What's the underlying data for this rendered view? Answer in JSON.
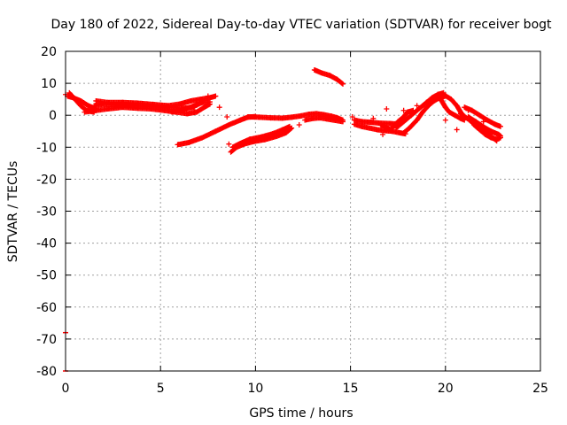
{
  "chart_data": {
    "type": "scatter",
    "title": "Day 180 of 2022, Sidereal Day-to-day VTEC variation (SDTVAR) for receiver bogt",
    "xlabel": "GPS time / hours",
    "ylabel": "SDTVAR / TECUs",
    "xlim": [
      0,
      25
    ],
    "ylim": [
      -80,
      20
    ],
    "xticks": [
      0,
      5,
      10,
      15,
      20,
      25
    ],
    "yticks": [
      -80,
      -70,
      -60,
      -50,
      -40,
      -30,
      -20,
      -10,
      0,
      10,
      20
    ],
    "grid": true,
    "marker": "+",
    "series_color": "#ff0000",
    "outliers": [
      {
        "x": 0.0,
        "y": -68
      },
      {
        "x": 0.0,
        "y": -80
      }
    ],
    "segments": [
      {
        "name": "arc-start-down",
        "points": [
          [
            0.2,
            7
          ],
          [
            0.5,
            5
          ],
          [
            0.8,
            3
          ],
          [
            1.1,
            1.5
          ],
          [
            1.5,
            1
          ]
        ]
      },
      {
        "name": "arc-start-up",
        "points": [
          [
            0.1,
            6
          ],
          [
            0.4,
            5.5
          ],
          [
            0.8,
            4.5
          ],
          [
            1.2,
            3
          ],
          [
            1.6,
            2
          ]
        ]
      },
      {
        "name": "band-low",
        "points": [
          [
            1.0,
            1
          ],
          [
            1.6,
            1.5
          ],
          [
            2.2,
            2
          ],
          [
            3.0,
            2.5
          ],
          [
            3.8,
            2.2
          ],
          [
            4.5,
            2
          ],
          [
            5.2,
            1.5
          ],
          [
            5.8,
            1
          ],
          [
            6.4,
            0.5
          ],
          [
            6.9,
            1
          ],
          [
            7.3,
            2.5
          ],
          [
            7.6,
            3.5
          ]
        ]
      },
      {
        "name": "band-mid",
        "points": [
          [
            1.5,
            3
          ],
          [
            2.0,
            3.5
          ],
          [
            2.8,
            3.2
          ],
          [
            3.5,
            3
          ],
          [
            4.2,
            2.8
          ],
          [
            4.9,
            2.6
          ],
          [
            5.6,
            2.4
          ],
          [
            6.2,
            2.2
          ],
          [
            6.8,
            2.5
          ]
        ]
      },
      {
        "name": "band-high",
        "points": [
          [
            1.6,
            4.5
          ],
          [
            2.2,
            4
          ],
          [
            3.0,
            4
          ],
          [
            3.8,
            3.8
          ],
          [
            4.6,
            3.4
          ],
          [
            5.4,
            3
          ],
          [
            6.0,
            3.5
          ],
          [
            6.6,
            4.5
          ],
          [
            7.1,
            5
          ],
          [
            7.6,
            5.5
          ],
          [
            7.9,
            6
          ]
        ]
      },
      {
        "name": "band-dip",
        "points": [
          [
            5.6,
            1
          ],
          [
            6.2,
            1.8
          ],
          [
            6.8,
            3
          ],
          [
            7.2,
            4
          ],
          [
            7.6,
            4.2
          ]
        ]
      },
      {
        "name": "arc-rise",
        "points": [
          [
            5.9,
            -9.2
          ],
          [
            6.5,
            -8.5
          ],
          [
            7.2,
            -7
          ],
          [
            7.9,
            -5
          ],
          [
            8.6,
            -3
          ],
          [
            9.2,
            -1.5
          ],
          [
            9.6,
            -0.6
          ],
          [
            10.0,
            -0.4
          ]
        ]
      },
      {
        "name": "flat-11",
        "points": [
          [
            9.6,
            -0.5
          ],
          [
            10.2,
            -0.6
          ],
          [
            10.8,
            -0.8
          ],
          [
            11.4,
            -0.9
          ],
          [
            11.9,
            -0.6
          ],
          [
            12.4,
            -0.2
          ],
          [
            12.8,
            0.3
          ],
          [
            13.2,
            0.5
          ],
          [
            13.6,
            0.2
          ],
          [
            14.0,
            -0.3
          ],
          [
            14.3,
            -0.8
          ],
          [
            14.6,
            -1.5
          ]
        ]
      },
      {
        "name": "flat-11b",
        "points": [
          [
            12.6,
            -1.5
          ],
          [
            13.0,
            -1
          ],
          [
            13.4,
            -0.8
          ],
          [
            13.8,
            -1.2
          ],
          [
            14.2,
            -1.6
          ],
          [
            14.6,
            -2
          ]
        ]
      },
      {
        "name": "arc-10-low",
        "points": [
          [
            8.7,
            -11.5
          ],
          [
            9.0,
            -10
          ],
          [
            9.4,
            -9
          ],
          [
            9.9,
            -8.2
          ],
          [
            10.5,
            -7.6
          ],
          [
            11.1,
            -6.6
          ],
          [
            11.6,
            -5.5
          ],
          [
            11.9,
            -4
          ]
        ]
      },
      {
        "name": "arc-10-high",
        "points": [
          [
            8.8,
            -10
          ],
          [
            9.2,
            -8.8
          ],
          [
            9.7,
            -7.5
          ],
          [
            10.3,
            -6.8
          ],
          [
            10.9,
            -5.8
          ],
          [
            11.4,
            -4.6
          ],
          [
            11.8,
            -3.5
          ]
        ]
      },
      {
        "name": "arc-13",
        "points": [
          [
            13.1,
            14.2
          ],
          [
            13.5,
            13.2
          ],
          [
            13.9,
            12.5
          ],
          [
            14.3,
            11.2
          ],
          [
            14.6,
            9.8
          ]
        ]
      },
      {
        "name": "cluster-16",
        "points": [
          [
            15.2,
            -2.8
          ],
          [
            15.6,
            -3.5
          ],
          [
            16.0,
            -4
          ],
          [
            16.4,
            -4.5
          ],
          [
            16.8,
            -4.8
          ],
          [
            17.2,
            -5
          ],
          [
            17.6,
            -5.5
          ],
          [
            17.9,
            -5.8
          ]
        ]
      },
      {
        "name": "cluster-16b",
        "points": [
          [
            15.2,
            -1.5
          ],
          [
            15.6,
            -2
          ],
          [
            16.1,
            -2.2
          ],
          [
            16.6,
            -2.5
          ],
          [
            17.1,
            -2.6
          ],
          [
            17.6,
            -2.8
          ]
        ]
      },
      {
        "name": "cluster-16c",
        "points": [
          [
            16.6,
            -3
          ],
          [
            17.1,
            -4.5
          ],
          [
            17.5,
            -2
          ],
          [
            17.8,
            -0.5
          ],
          [
            18.0,
            1
          ],
          [
            18.3,
            1.5
          ]
        ]
      },
      {
        "name": "rise-18",
        "points": [
          [
            17.4,
            -4
          ],
          [
            17.8,
            -2
          ],
          [
            18.2,
            0
          ],
          [
            18.6,
            2
          ],
          [
            19.0,
            4
          ],
          [
            19.3,
            5.5
          ],
          [
            19.6,
            6.5
          ],
          [
            19.9,
            7
          ]
        ]
      },
      {
        "name": "rise-18b",
        "points": [
          [
            17.8,
            -5.5
          ],
          [
            18.1,
            -4
          ],
          [
            18.5,
            -1.5
          ],
          [
            18.8,
            1
          ],
          [
            19.1,
            3
          ],
          [
            19.4,
            4.5
          ],
          [
            19.7,
            5.5
          ],
          [
            20.0,
            6
          ]
        ]
      },
      {
        "name": "dip-20",
        "points": [
          [
            19.6,
            6.5
          ],
          [
            19.8,
            4.5
          ],
          [
            20.0,
            2.5
          ],
          [
            20.2,
            1
          ],
          [
            20.5,
            0
          ],
          [
            20.8,
            -1
          ],
          [
            21.0,
            -1.5
          ]
        ]
      },
      {
        "name": "arc-20",
        "points": [
          [
            19.9,
            6.5
          ],
          [
            20.3,
            5
          ],
          [
            20.6,
            3
          ],
          [
            20.8,
            1
          ],
          [
            21.0,
            -0.5
          ]
        ]
      },
      {
        "name": "arc-21",
        "points": [
          [
            20.8,
            0.5
          ],
          [
            21.2,
            -1.2
          ],
          [
            21.6,
            -3.2
          ],
          [
            22.0,
            -5
          ],
          [
            22.4,
            -6.5
          ],
          [
            22.7,
            -8
          ]
        ]
      },
      {
        "name": "arc-21b",
        "points": [
          [
            21.0,
            2.5
          ],
          [
            21.4,
            1.5
          ],
          [
            21.8,
            0
          ],
          [
            22.2,
            -1.5
          ],
          [
            22.6,
            -2.8
          ],
          [
            22.9,
            -3.5
          ]
        ]
      },
      {
        "name": "arc-21c",
        "points": [
          [
            21.5,
            -3
          ],
          [
            21.8,
            -4.5
          ],
          [
            22.1,
            -6
          ],
          [
            22.4,
            -7
          ],
          [
            22.7,
            -7.5
          ],
          [
            22.9,
            -7
          ]
        ]
      },
      {
        "name": "arc-21d",
        "points": [
          [
            21.2,
            -0.5
          ],
          [
            21.6,
            -2
          ],
          [
            22.0,
            -3.6
          ],
          [
            22.4,
            -5
          ],
          [
            22.8,
            -6
          ],
          [
            22.9,
            -6.5
          ]
        ]
      }
    ],
    "scatter_points": [
      {
        "x": 0.0,
        "y": 6.5
      },
      {
        "x": 7.5,
        "y": 6
      },
      {
        "x": 8.1,
        "y": 2.5
      },
      {
        "x": 8.5,
        "y": -0.5
      },
      {
        "x": 8.6,
        "y": -9
      },
      {
        "x": 12.3,
        "y": -3
      },
      {
        "x": 15.1,
        "y": -0.5
      },
      {
        "x": 16.9,
        "y": 2
      },
      {
        "x": 16.7,
        "y": -6
      },
      {
        "x": 16.2,
        "y": -1
      },
      {
        "x": 17.8,
        "y": 1.5
      },
      {
        "x": 18.5,
        "y": 3
      },
      {
        "x": 19.4,
        "y": 5
      },
      {
        "x": 20.0,
        "y": -1.5
      },
      {
        "x": 20.6,
        "y": -4.5
      },
      {
        "x": 21.2,
        "y": 1.5
      },
      {
        "x": 22.0,
        "y": -2
      }
    ]
  }
}
